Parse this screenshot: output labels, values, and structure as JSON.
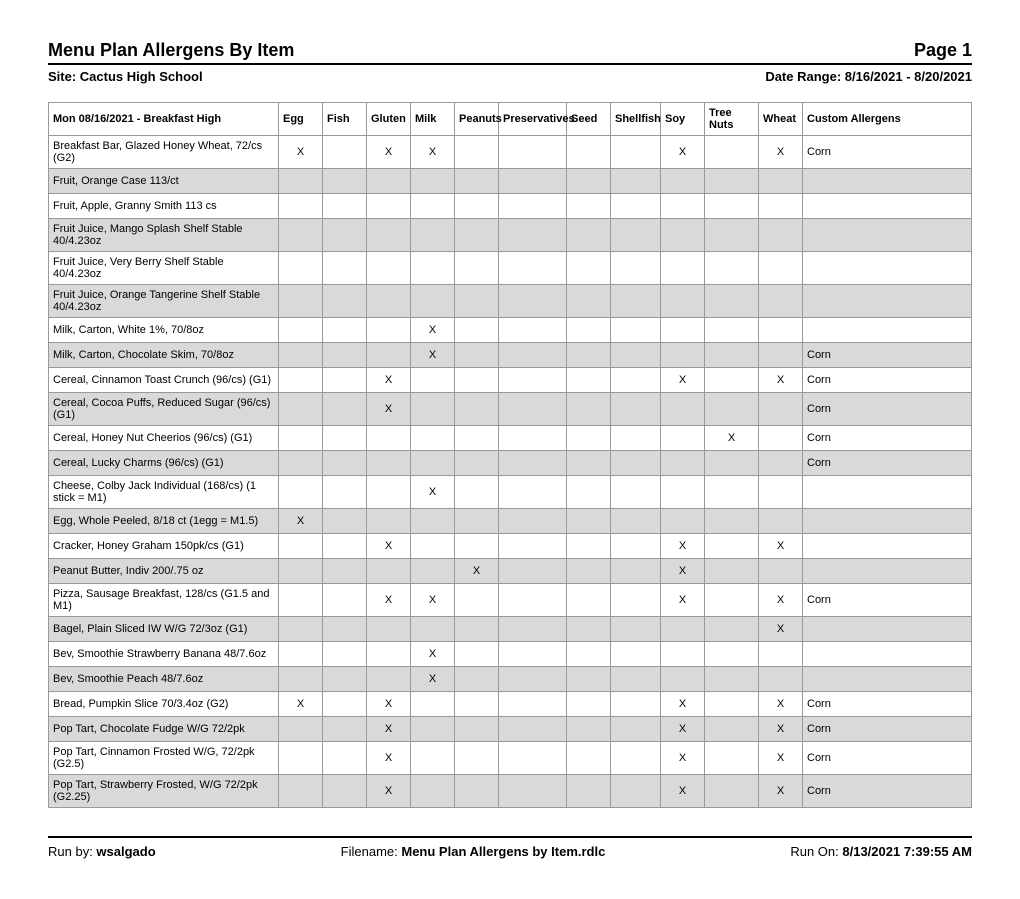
{
  "report": {
    "title": "Menu Plan Allergens By Item",
    "page_label": "Page 1",
    "site_label": "Site: Cactus High School",
    "date_range_label": "Date Range: 8/16/2021 - 8/20/2021"
  },
  "table": {
    "header_name": "Mon 08/16/2021 - Breakfast High",
    "columns": [
      "Egg",
      "Fish",
      "Gluten",
      "Milk",
      "Peanuts",
      "Preservatives",
      "Seed",
      "Shellfish",
      "Soy",
      "Tree Nuts",
      "Wheat",
      "Custom Allergens"
    ],
    "rows": [
      {
        "name": "Breakfast Bar, Glazed Honey Wheat, 72/cs (G2)",
        "vals": [
          "X",
          "",
          "X",
          "X",
          "",
          "",
          "",
          "",
          "X",
          "",
          "X",
          "Corn"
        ]
      },
      {
        "name": "Fruit, Orange Case 113/ct",
        "vals": [
          "",
          "",
          "",
          "",
          "",
          "",
          "",
          "",
          "",
          "",
          "",
          ""
        ]
      },
      {
        "name": "Fruit, Apple, Granny Smith 113 cs",
        "vals": [
          "",
          "",
          "",
          "",
          "",
          "",
          "",
          "",
          "",
          "",
          "",
          ""
        ]
      },
      {
        "name": "Fruit Juice, Mango Splash Shelf Stable 40/4.23oz",
        "vals": [
          "",
          "",
          "",
          "",
          "",
          "",
          "",
          "",
          "",
          "",
          "",
          ""
        ]
      },
      {
        "name": "Fruit Juice, Very Berry Shelf Stable 40/4.23oz",
        "vals": [
          "",
          "",
          "",
          "",
          "",
          "",
          "",
          "",
          "",
          "",
          "",
          ""
        ]
      },
      {
        "name": "Fruit Juice, Orange Tangerine Shelf Stable 40/4.23oz",
        "vals": [
          "",
          "",
          "",
          "",
          "",
          "",
          "",
          "",
          "",
          "",
          "",
          ""
        ]
      },
      {
        "name": "Milk, Carton, White 1%, 70/8oz",
        "vals": [
          "",
          "",
          "",
          "X",
          "",
          "",
          "",
          "",
          "",
          "",
          "",
          ""
        ]
      },
      {
        "name": "Milk, Carton, Chocolate Skim, 70/8oz",
        "vals": [
          "",
          "",
          "",
          "X",
          "",
          "",
          "",
          "",
          "",
          "",
          "",
          "Corn"
        ]
      },
      {
        "name": "Cereal, Cinnamon Toast Crunch (96/cs) (G1)",
        "vals": [
          "",
          "",
          "X",
          "",
          "",
          "",
          "",
          "",
          "X",
          "",
          "X",
          "Corn"
        ]
      },
      {
        "name": "Cereal, Cocoa Puffs, Reduced Sugar (96/cs)  (G1)",
        "vals": [
          "",
          "",
          "X",
          "",
          "",
          "",
          "",
          "",
          "",
          "",
          "",
          "Corn"
        ]
      },
      {
        "name": "Cereal, Honey Nut Cheerios (96/cs) (G1)",
        "vals": [
          "",
          "",
          "",
          "",
          "",
          "",
          "",
          "",
          "",
          "X",
          "",
          "Corn"
        ]
      },
      {
        "name": "Cereal, Lucky Charms (96/cs) (G1)",
        "vals": [
          "",
          "",
          "",
          "",
          "",
          "",
          "",
          "",
          "",
          "",
          "",
          "Corn"
        ]
      },
      {
        "name": "Cheese, Colby Jack Individual (168/cs) (1 stick = M1)",
        "vals": [
          "",
          "",
          "",
          "X",
          "",
          "",
          "",
          "",
          "",
          "",
          "",
          ""
        ]
      },
      {
        "name": "Egg, Whole Peeled, 8/18 ct (1egg = M1.5)",
        "vals": [
          "X",
          "",
          "",
          "",
          "",
          "",
          "",
          "",
          "",
          "",
          "",
          ""
        ]
      },
      {
        "name": "Cracker, Honey Graham 150pk/cs (G1)",
        "vals": [
          "",
          "",
          "X",
          "",
          "",
          "",
          "",
          "",
          "X",
          "",
          "X",
          ""
        ]
      },
      {
        "name": "Peanut Butter, Indiv 200/.75 oz",
        "vals": [
          "",
          "",
          "",
          "",
          "X",
          "",
          "",
          "",
          "X",
          "",
          "",
          ""
        ]
      },
      {
        "name": "Pizza, Sausage Breakfast, 128/cs (G1.5 and M1)",
        "vals": [
          "",
          "",
          "X",
          "X",
          "",
          "",
          "",
          "",
          "X",
          "",
          "X",
          "Corn"
        ]
      },
      {
        "name": "Bagel, Plain Sliced IW W/G 72/3oz (G1)",
        "vals": [
          "",
          "",
          "",
          "",
          "",
          "",
          "",
          "",
          "",
          "",
          "X",
          ""
        ]
      },
      {
        "name": "Bev, Smoothie Strawberry Banana 48/7.6oz",
        "vals": [
          "",
          "",
          "",
          "X",
          "",
          "",
          "",
          "",
          "",
          "",
          "",
          ""
        ]
      },
      {
        "name": "Bev, Smoothie Peach 48/7.6oz",
        "vals": [
          "",
          "",
          "",
          "X",
          "",
          "",
          "",
          "",
          "",
          "",
          "",
          ""
        ]
      },
      {
        "name": "Bread, Pumpkin Slice 70/3.4oz (G2)",
        "vals": [
          "X",
          "",
          "X",
          "",
          "",
          "",
          "",
          "",
          "X",
          "",
          "X",
          "Corn"
        ]
      },
      {
        "name": "Pop Tart, Chocolate Fudge W/G 72/2pk",
        "vals": [
          "",
          "",
          "X",
          "",
          "",
          "",
          "",
          "",
          "X",
          "",
          "X",
          "Corn"
        ]
      },
      {
        "name": "Pop Tart, Cinnamon Frosted W/G, 72/2pk (G2.5)",
        "vals": [
          "",
          "",
          "X",
          "",
          "",
          "",
          "",
          "",
          "X",
          "",
          "X",
          "Corn"
        ]
      },
      {
        "name": "Pop Tart, Strawberry Frosted, W/G 72/2pk (G2.25)",
        "vals": [
          "",
          "",
          "X",
          "",
          "",
          "",
          "",
          "",
          "X",
          "",
          "X",
          "Corn"
        ]
      }
    ]
  },
  "footer": {
    "run_by_label": "Run by: ",
    "run_by_value": "wsalgado",
    "filename_label": "Filename: ",
    "filename_value": "Menu Plan Allergens by Item.rdlc",
    "run_on_label": "Run On: ",
    "run_on_value": "8/13/2021 7:39:55 AM"
  }
}
